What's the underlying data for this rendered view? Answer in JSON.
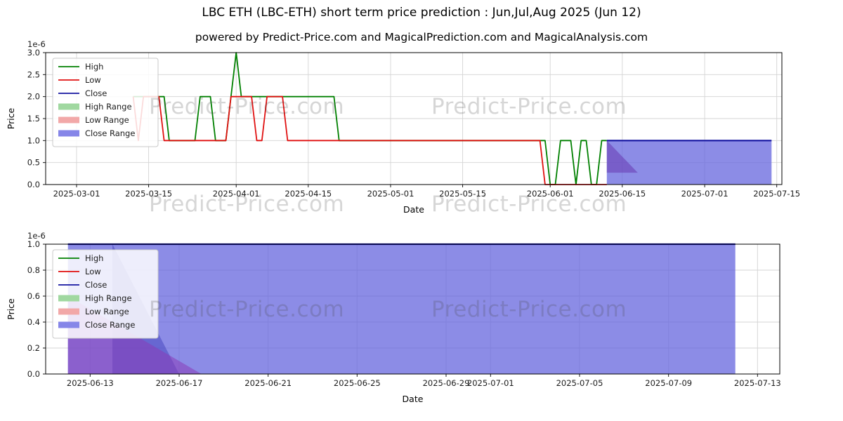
{
  "title": "LBC ETH (LBC-ETH) short term price prediction : Jun,Jul,Aug 2025 (Jun 12)",
  "subtitle": "powered by Predict-Price.com and MagicalPrediction.com and MagicalAnalysis.com",
  "watermark": "Predict-Price.com",
  "colors": {
    "high": "#008000",
    "low": "#e01010",
    "close": "#1414a0",
    "high_range": "#a0d8a0",
    "low_range": "#f2a8a8",
    "close_range": "#8686e8",
    "band_fill": "#6666dd",
    "grid": "#d4d4d4"
  },
  "chart_data": [
    {
      "type": "line",
      "name": "price-history-and-prediction",
      "xlabel": "Date",
      "ylabel": "Price",
      "offset_text": "1e-6",
      "x_domain": [
        "2025-02-23",
        "2025-07-16"
      ],
      "y_domain": [
        0,
        3.0
      ],
      "x_ticks": [
        "2025-03-01",
        "2025-03-15",
        "2025-04-01",
        "2025-04-15",
        "2025-05-01",
        "2025-05-15",
        "2025-06-01",
        "2025-06-15",
        "2025-07-01",
        "2025-07-15"
      ],
      "y_ticks": [
        {
          "v": 0,
          "label": "0.0"
        },
        {
          "v": 0.5,
          "label": "0.5"
        },
        {
          "v": 1,
          "label": "1.0"
        },
        {
          "v": 1.5,
          "label": "1.5"
        },
        {
          "v": 2,
          "label": "2.0"
        },
        {
          "v": 2.5,
          "label": "2.5"
        },
        {
          "v": 3,
          "label": "3.0"
        }
      ],
      "bands": [
        {
          "label": "Close Range",
          "color": "#6666dd",
          "opacity": 0.75,
          "points": [
            [
              "2025-06-12",
              0
            ],
            [
              "2025-06-12",
              1
            ],
            [
              "2025-07-14",
              1
            ],
            [
              "2025-07-14",
              0
            ]
          ]
        },
        {
          "label": "Low Range",
          "color": "#6a3fb5",
          "opacity": 0.6,
          "points": [
            [
              "2025-06-12",
              1
            ],
            [
              "2025-06-18",
              0.27
            ],
            [
              "2025-06-12",
              0.27
            ]
          ]
        }
      ],
      "series": [
        {
          "name": "High",
          "color": "#008000",
          "width": 1.8,
          "points": [
            [
              "2025-03-12",
              2
            ],
            [
              "2025-03-18",
              2
            ],
            [
              "2025-03-19",
              1
            ],
            [
              "2025-03-24",
              1
            ],
            [
              "2025-03-25",
              2
            ],
            [
              "2025-03-27",
              2
            ],
            [
              "2025-03-28",
              1
            ],
            [
              "2025-03-30",
              1
            ],
            [
              "2025-03-31",
              2
            ],
            [
              "2025-04-01",
              3
            ],
            [
              "2025-04-02",
              2
            ],
            [
              "2025-04-20",
              2
            ],
            [
              "2025-04-21",
              1
            ],
            [
              "2025-05-31",
              1
            ],
            [
              "2025-06-01",
              0
            ],
            [
              "2025-06-02",
              0
            ],
            [
              "2025-06-03",
              1
            ],
            [
              "2025-06-05",
              1
            ],
            [
              "2025-06-06",
              0
            ],
            [
              "2025-06-07",
              1
            ],
            [
              "2025-06-08",
              1
            ],
            [
              "2025-06-09",
              0
            ],
            [
              "2025-06-10",
              0
            ],
            [
              "2025-06-11",
              1
            ],
            [
              "2025-06-12",
              1
            ]
          ]
        },
        {
          "name": "Low",
          "color": "#e01010",
          "width": 1.8,
          "points": [
            [
              "2025-03-12",
              2
            ],
            [
              "2025-03-13",
              1
            ],
            [
              "2025-03-14",
              2
            ],
            [
              "2025-03-17",
              2
            ],
            [
              "2025-03-18",
              1
            ],
            [
              "2025-03-30",
              1
            ],
            [
              "2025-03-31",
              2
            ],
            [
              "2025-04-04",
              2
            ],
            [
              "2025-04-05",
              1
            ],
            [
              "2025-04-06",
              1
            ],
            [
              "2025-04-07",
              2
            ],
            [
              "2025-04-10",
              2
            ],
            [
              "2025-04-11",
              1
            ],
            [
              "2025-05-30",
              1
            ],
            [
              "2025-05-31",
              0
            ],
            [
              "2025-06-12",
              0
            ]
          ]
        },
        {
          "name": "Close",
          "color": "#1414a0",
          "width": 2.2,
          "points": [
            [
              "2025-06-12",
              1
            ],
            [
              "2025-07-14",
              1
            ]
          ]
        }
      ],
      "legend": [
        {
          "label": "High",
          "color": "#008000",
          "thick": false
        },
        {
          "label": "Low",
          "color": "#e01010",
          "thick": false
        },
        {
          "label": "Close",
          "color": "#1414a0",
          "thick": false
        },
        {
          "label": "High Range",
          "color": "#a0d8a0",
          "thick": true
        },
        {
          "label": "Low Range",
          "color": "#f2a8a8",
          "thick": true
        },
        {
          "label": "Close Range",
          "color": "#8686e8",
          "thick": true
        }
      ]
    },
    {
      "type": "line",
      "name": "prediction-detail",
      "xlabel": "Date",
      "ylabel": "Price",
      "offset_text": "1e-6",
      "x_domain": [
        "2025-06-11",
        "2025-07-14"
      ],
      "y_domain": [
        0,
        1.0
      ],
      "x_ticks": [
        "2025-06-13",
        "2025-06-17",
        "2025-06-21",
        "2025-06-25",
        "2025-06-29",
        "2025-07-01",
        "2025-07-05",
        "2025-07-09",
        "2025-07-13"
      ],
      "y_ticks": [
        {
          "v": 0,
          "label": "0.0"
        },
        {
          "v": 0.2,
          "label": "0.2"
        },
        {
          "v": 0.4,
          "label": "0.4"
        },
        {
          "v": 0.6,
          "label": "0.6"
        },
        {
          "v": 0.8,
          "label": "0.8"
        },
        {
          "v": 1,
          "label": "1.0"
        }
      ],
      "bands": [
        {
          "label": "Close Range",
          "color": "#6666dd",
          "opacity": 0.75,
          "points": [
            [
              "2025-06-12",
              0
            ],
            [
              "2025-06-12",
              1
            ],
            [
              "2025-07-12",
              1
            ],
            [
              "2025-07-12",
              0
            ]
          ]
        },
        {
          "label": "High Range",
          "color": "#4848c0",
          "opacity": 0.55,
          "points": [
            [
              "2025-06-14",
              1
            ],
            [
              "2025-06-17",
              0
            ],
            [
              "2025-06-14",
              0
            ]
          ]
        },
        {
          "label": "Low Range",
          "color": "#8a3cb8",
          "opacity": 0.55,
          "points": [
            [
              "2025-06-12",
              0.6
            ],
            [
              "2025-06-18",
              0
            ],
            [
              "2025-06-12",
              0
            ]
          ]
        }
      ],
      "series": [
        {
          "name": "High",
          "color": "#008000",
          "width": 1.8,
          "points": [
            [
              "2025-06-12",
              1
            ],
            [
              "2025-07-12",
              1
            ]
          ]
        },
        {
          "name": "Close",
          "color": "#1414a0",
          "width": 2.2,
          "points": [
            [
              "2025-06-12",
              1
            ],
            [
              "2025-07-12",
              1
            ]
          ]
        }
      ],
      "legend": [
        {
          "label": "High",
          "color": "#008000",
          "thick": false
        },
        {
          "label": "Low",
          "color": "#e01010",
          "thick": false
        },
        {
          "label": "Close",
          "color": "#1414a0",
          "thick": false
        },
        {
          "label": "High Range",
          "color": "#a0d8a0",
          "thick": true
        },
        {
          "label": "Low Range",
          "color": "#f2a8a8",
          "thick": true
        },
        {
          "label": "Close Range",
          "color": "#8686e8",
          "thick": true
        }
      ]
    }
  ]
}
